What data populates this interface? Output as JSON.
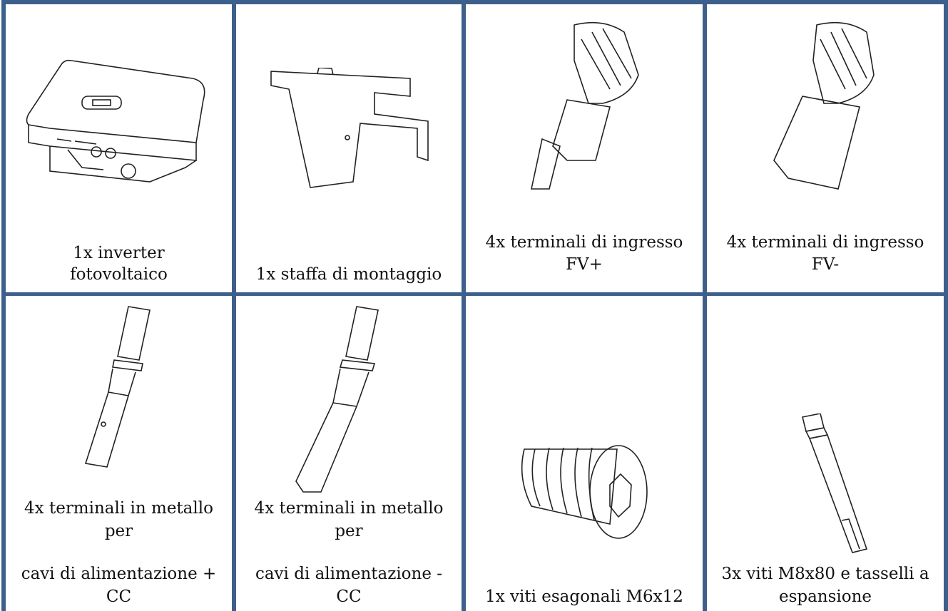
{
  "cells": [
    {
      "lines": [
        "1x inverter",
        "fotovoltaico"
      ]
    },
    {
      "lines": [
        "1x staffa di montaggio"
      ]
    },
    {
      "lines": [
        "4x terminali di ingresso",
        "FV+"
      ]
    },
    {
      "lines": [
        "4x terminali di ingresso",
        "FV-"
      ]
    },
    {
      "lines": [
        "4x terminali in metallo",
        "per",
        "cavi di alimentazione +",
        "CC"
      ]
    },
    {
      "lines": [
        "4x terminali in metallo",
        "per",
        "cavi di alimentazione -",
        "CC"
      ]
    },
    {
      "lines": [
        "1x viti esagonali M6x12"
      ]
    },
    {
      "lines": [
        "3x viti M8x80 e tasselli a",
        "espansione"
      ]
    }
  ]
}
